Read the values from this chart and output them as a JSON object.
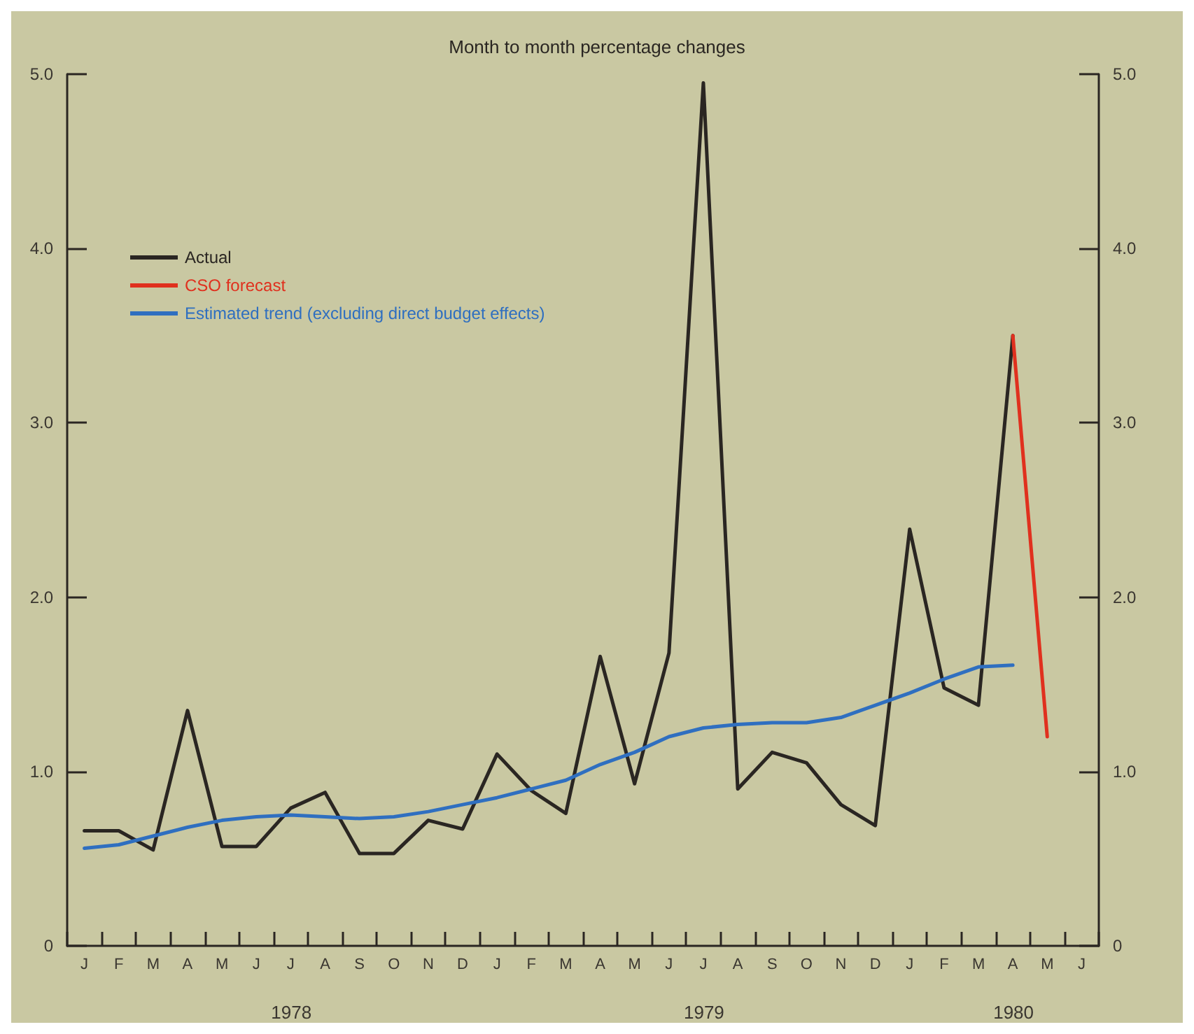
{
  "chart_data": {
    "type": "line",
    "title": "Month to month percentage changes",
    "categories": [
      "J",
      "F",
      "M",
      "A",
      "M",
      "J",
      "J",
      "A",
      "S",
      "O",
      "N",
      "D",
      "J",
      "F",
      "M",
      "A",
      "M",
      "J",
      "J",
      "A",
      "S",
      "O",
      "N",
      "D",
      "J",
      "F",
      "M",
      "A",
      "M",
      "J"
    ],
    "series": [
      {
        "name": "Actual",
        "color": "#2a2622",
        "values": [
          0.66,
          0.66,
          0.55,
          1.35,
          0.57,
          0.57,
          0.79,
          0.88,
          0.53,
          0.53,
          0.72,
          0.67,
          1.1,
          0.89,
          0.76,
          1.66,
          0.93,
          1.68,
          4.95,
          0.9,
          1.11,
          1.05,
          0.81,
          0.69,
          2.39,
          1.48,
          1.38,
          3.5,
          null,
          null
        ]
      },
      {
        "name": "CSO forecast",
        "color": "#e0301e",
        "values": [
          null,
          null,
          null,
          null,
          null,
          null,
          null,
          null,
          null,
          null,
          null,
          null,
          null,
          null,
          null,
          null,
          null,
          null,
          null,
          null,
          null,
          null,
          null,
          null,
          null,
          null,
          null,
          3.5,
          1.2,
          null
        ]
      },
      {
        "name": "Estimated trend (excluding direct budget effects)",
        "color": "#2f6fc0",
        "values": [
          0.56,
          0.58,
          0.63,
          0.68,
          0.72,
          0.74,
          0.75,
          0.74,
          0.73,
          0.74,
          0.77,
          0.81,
          0.85,
          0.9,
          0.95,
          1.04,
          1.11,
          1.2,
          1.25,
          1.27,
          1.28,
          1.28,
          1.31,
          1.38,
          1.45,
          1.53,
          1.6,
          1.61,
          null,
          null
        ]
      }
    ],
    "annotations": [
      "1978",
      "1979",
      "1980"
    ],
    "ylim": [
      0,
      5
    ],
    "yticks": [
      0,
      {
        "value": 1,
        "label": "1.0"
      },
      {
        "value": 2,
        "label": "2.0"
      },
      {
        "value": 3,
        "label": "3.0"
      },
      {
        "value": 4,
        "label": "4.0"
      },
      {
        "value": 5,
        "label": "5.0"
      }
    ],
    "y2lim": [
      0,
      5
    ],
    "y2ticks": [
      0,
      {
        "value": 1,
        "label": "1.0"
      },
      {
        "value": 2,
        "label": "2.0"
      },
      {
        "value": 3,
        "label": "3.0"
      },
      {
        "value": 4,
        "label": "4.0"
      },
      {
        "value": 5,
        "label": "5.0"
      }
    ],
    "grid": false,
    "legend": "top left",
    "marker": "none",
    "line_style": "solid"
  }
}
